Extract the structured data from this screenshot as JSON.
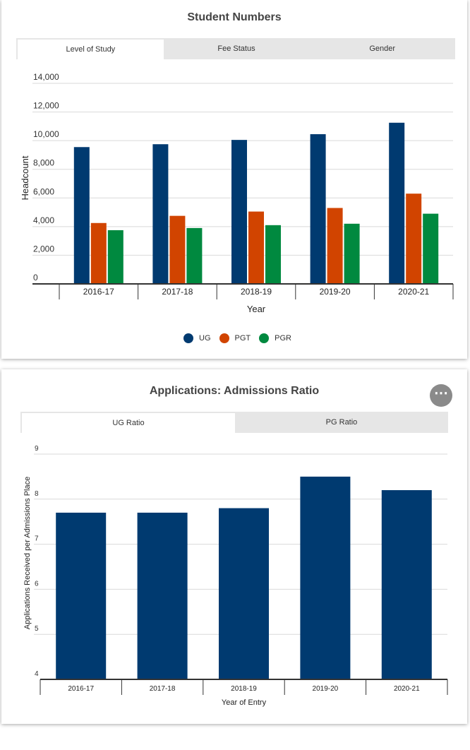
{
  "charts": [
    {
      "title": "Student Numbers",
      "tabs": [
        {
          "label": "Level of Study",
          "active": true
        },
        {
          "label": "Fee Status",
          "active": false
        },
        {
          "label": "Gender",
          "active": false
        }
      ]
    },
    {
      "title": "Applications: Admissions Ratio",
      "tabs": [
        {
          "label": "UG Ratio",
          "active": true
        },
        {
          "label": "PG Ratio",
          "active": false
        }
      ],
      "menu_icon": "more-horizontal-icon"
    }
  ],
  "chart_data": [
    {
      "type": "bar",
      "title": "Student Numbers",
      "xlabel": "Year",
      "ylabel": "Headcount",
      "categories": [
        "2016-17",
        "2017-18",
        "2018-19",
        "2019-20",
        "2020-21"
      ],
      "ylim": [
        0,
        14000
      ],
      "yticks": [
        0,
        2000,
        4000,
        6000,
        8000,
        10000,
        12000,
        14000
      ],
      "ytick_labels": [
        "0",
        "2,000",
        "4,000",
        "6,000",
        "8,000",
        "10,000",
        "12,000",
        "14,000"
      ],
      "grid": true,
      "legend": "bottom-center",
      "series": [
        {
          "name": "UG",
          "color": "#003a70",
          "values": [
            9550,
            9750,
            10050,
            10450,
            11250
          ]
        },
        {
          "name": "PGT",
          "color": "#d14400",
          "values": [
            4250,
            4750,
            5050,
            5300,
            6300
          ]
        },
        {
          "name": "PGR",
          "color": "#00893f",
          "values": [
            3750,
            3900,
            4100,
            4200,
            4900
          ]
        }
      ]
    },
    {
      "type": "bar",
      "title": "Applications: Admissions Ratio",
      "xlabel": "Year of Entry",
      "ylabel": "Applications Received per Admissions Place",
      "categories": [
        "2016-17",
        "2017-18",
        "2018-19",
        "2019-20",
        "2020-21"
      ],
      "ylim": [
        4,
        9
      ],
      "yticks": [
        4,
        5,
        6,
        7,
        8,
        9
      ],
      "ytick_labels": [
        "4",
        "5",
        "6",
        "7",
        "8",
        "9"
      ],
      "grid": true,
      "series": [
        {
          "name": "",
          "color": "#003a70",
          "values": [
            7.7,
            7.7,
            7.8,
            8.5,
            8.2
          ]
        }
      ]
    }
  ]
}
